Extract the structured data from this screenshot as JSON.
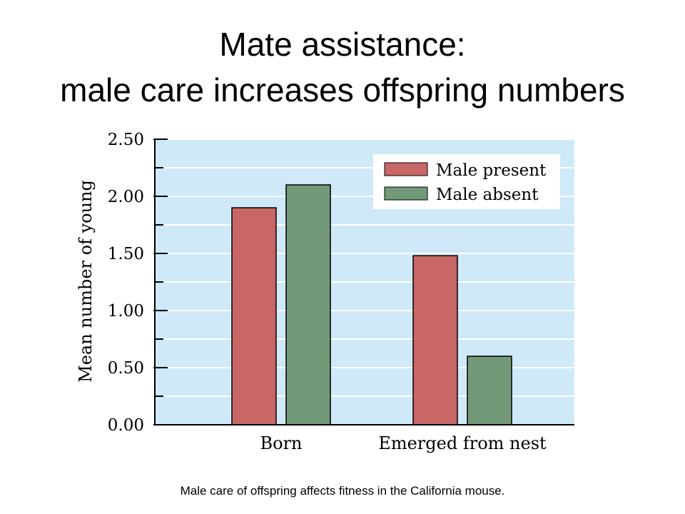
{
  "slide": {
    "title_line_1": "Mate assistance:",
    "title_line_2": "male care increases offspring numbers",
    "caption": "Male care of offspring affects fitness in the California mouse."
  },
  "colors": {
    "plot_background": "#cfe9f9",
    "gridline": "#ffffff",
    "male_present": "#c96767",
    "male_absent": "#739a78",
    "axis": "#000000"
  },
  "chart_data": {
    "type": "bar",
    "title": "",
    "xlabel": "",
    "ylabel": "Mean number of young",
    "categories": [
      "Born",
      "Emerged from nest"
    ],
    "series": [
      {
        "name": "Male present",
        "values": [
          1.9,
          1.48
        ]
      },
      {
        "name": "Male absent",
        "values": [
          2.1,
          0.6
        ]
      }
    ],
    "ylim": [
      0,
      2.5
    ],
    "y_ticks": [
      "0.00",
      "0.50",
      "1.00",
      "1.50",
      "2.00",
      "2.50"
    ],
    "y_tick_values": [
      0,
      0.5,
      1.0,
      1.5,
      2.0,
      2.5
    ],
    "grid": true,
    "legend_position": "top-right"
  }
}
